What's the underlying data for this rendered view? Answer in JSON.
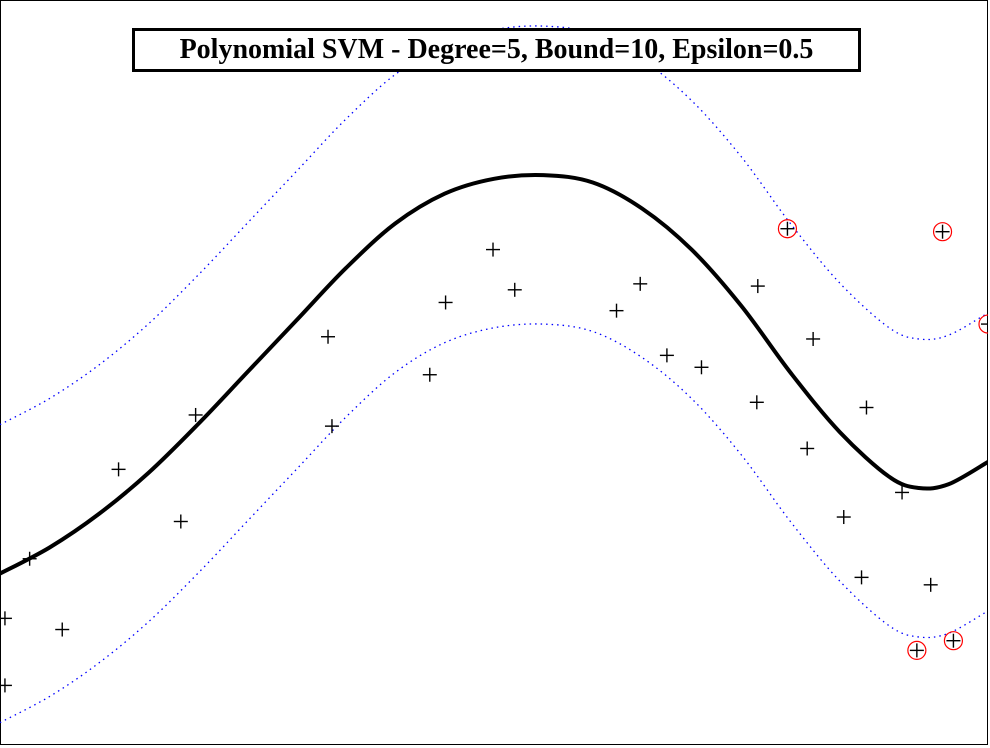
{
  "chart_data": {
    "type": "scatter",
    "title": "Polynomial SVM - Degree=5, Bound=10, Epsilon=0.5",
    "xlabel": "",
    "ylabel": "",
    "xlim": [
      0,
      1
    ],
    "ylim": [
      0,
      1
    ],
    "grid": false,
    "epsilon_tube_offset": 0.2,
    "regression_curve": {
      "x": [
        0.0,
        0.05,
        0.1,
        0.15,
        0.2,
        0.25,
        0.3,
        0.35,
        0.4,
        0.45,
        0.5,
        0.55,
        0.6,
        0.65,
        0.7,
        0.75,
        0.8,
        0.85,
        0.9,
        0.93,
        0.96,
        1.0
      ],
      "y": [
        0.23,
        0.265,
        0.31,
        0.365,
        0.43,
        0.5,
        0.57,
        0.64,
        0.7,
        0.74,
        0.76,
        0.765,
        0.755,
        0.72,
        0.665,
        0.59,
        0.5,
        0.42,
        0.36,
        0.345,
        0.35,
        0.38
      ]
    },
    "points": [
      {
        "x": 0.005,
        "y": 0.08
      },
      {
        "x": 0.005,
        "y": 0.17
      },
      {
        "x": 0.03,
        "y": 0.25
      },
      {
        "x": 0.063,
        "y": 0.155
      },
      {
        "x": 0.12,
        "y": 0.37
      },
      {
        "x": 0.183,
        "y": 0.3
      },
      {
        "x": 0.198,
        "y": 0.443
      },
      {
        "x": 0.332,
        "y": 0.548
      },
      {
        "x": 0.336,
        "y": 0.428
      },
      {
        "x": 0.435,
        "y": 0.497
      },
      {
        "x": 0.451,
        "y": 0.594
      },
      {
        "x": 0.499,
        "y": 0.665
      },
      {
        "x": 0.521,
        "y": 0.611
      },
      {
        "x": 0.624,
        "y": 0.583
      },
      {
        "x": 0.648,
        "y": 0.619
      },
      {
        "x": 0.675,
        "y": 0.523
      },
      {
        "x": 0.71,
        "y": 0.507
      },
      {
        "x": 0.766,
        "y": 0.46
      },
      {
        "x": 0.767,
        "y": 0.616
      },
      {
        "x": 0.797,
        "y": 0.693,
        "support_vector": true
      },
      {
        "x": 0.817,
        "y": 0.398
      },
      {
        "x": 0.823,
        "y": 0.545
      },
      {
        "x": 0.854,
        "y": 0.306
      },
      {
        "x": 0.872,
        "y": 0.225
      },
      {
        "x": 0.877,
        "y": 0.453
      },
      {
        "x": 0.913,
        "y": 0.339
      },
      {
        "x": 0.928,
        "y": 0.127,
        "support_vector": true
      },
      {
        "x": 0.942,
        "y": 0.215
      },
      {
        "x": 0.954,
        "y": 0.689,
        "support_vector": true
      },
      {
        "x": 0.965,
        "y": 0.14,
        "support_vector": true
      },
      {
        "x": 1.0,
        "y": 0.565,
        "support_vector": true
      }
    ],
    "colors": {
      "curve": "#000000",
      "tube": "#0000ff",
      "points": "#000000",
      "support_vector_ring": "#ff0000"
    }
  }
}
